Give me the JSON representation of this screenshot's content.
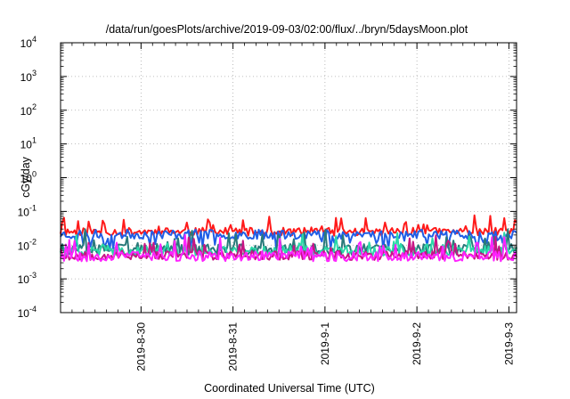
{
  "chart_data": {
    "type": "line",
    "title": "/data/run/goesPlots/archive/2019-09-03/02:00/flux/../bryn/5daysMoon.plot",
    "xlabel": "Coordinated Universal Time (UTC)",
    "ylabel": "cGy/day",
    "x_range": [
      "2019-08-29T03:00",
      "2019-09-03T02:00"
    ],
    "x_ticks": [
      {
        "label": "2019-8-30",
        "t": "2019-08-30T00:00"
      },
      {
        "label": "2019-8-31",
        "t": "2019-08-31T00:00"
      },
      {
        "label": "2019-9-1",
        "t": "2019-09-01T00:00"
      },
      {
        "label": "2019-9-2",
        "t": "2019-09-02T00:00"
      },
      {
        "label": "2019-9-3",
        "t": "2019-09-03T00:00"
      }
    ],
    "y_scale": "log",
    "ylim": [
      0.0001,
      10000
    ],
    "y_ticks": [
      {
        "base": "10",
        "exp": "-4"
      },
      {
        "base": "10",
        "exp": "-3"
      },
      {
        "base": "10",
        "exp": "-2"
      },
      {
        "base": "10",
        "exp": "-1"
      },
      {
        "base": "10",
        "exp": "0"
      },
      {
        "base": "10",
        "exp": "1"
      },
      {
        "base": "10",
        "exp": "2"
      },
      {
        "base": "10",
        "exp": "3"
      },
      {
        "base": "10",
        "exp": "4"
      }
    ],
    "grid": true,
    "series": [
      {
        "color": "#ff1a1a",
        "median": 0.025,
        "spread": 0.12,
        "spike": 0.32,
        "seed": 11
      },
      {
        "color": "#1f5ee6",
        "median": 0.021,
        "spread": 0.14,
        "spike": -0.32,
        "seed": 23
      },
      {
        "color": "#2a7a7a",
        "median": 0.0075,
        "spread": 0.16,
        "spike": 0.42,
        "seed": 37
      },
      {
        "color": "#2bd8a8",
        "median": 0.0068,
        "spread": 0.15,
        "spike": 0.38,
        "seed": 41
      },
      {
        "color": "#c71585",
        "median": 0.005,
        "spread": 0.14,
        "spike": 0.4,
        "seed": 53
      },
      {
        "color": "#ff22ff",
        "median": 0.0047,
        "spread": 0.15,
        "spike": 0.45,
        "seed": 67
      }
    ]
  }
}
